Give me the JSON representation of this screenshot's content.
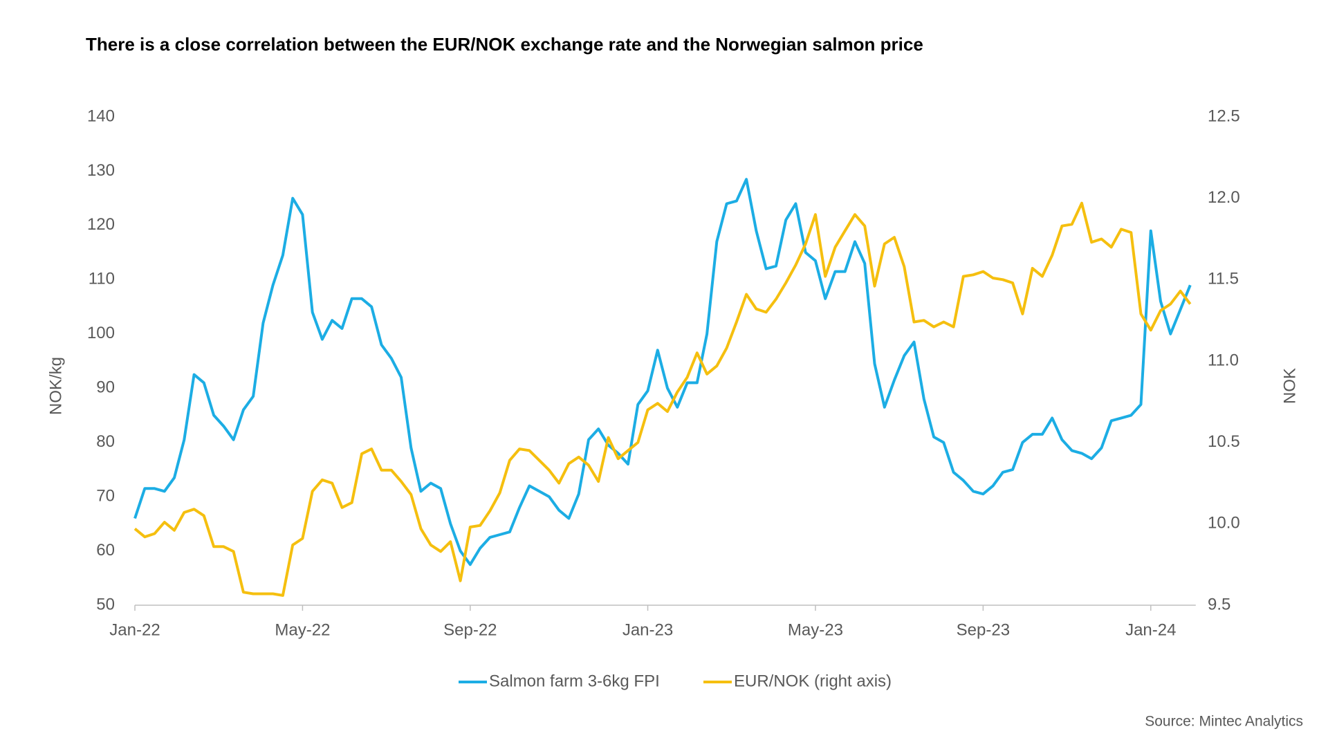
{
  "chart_data": {
    "type": "line",
    "title": "There is a close correlation between the EUR/NOK exchange rate and the Norwegian salmon price",
    "y_label": "NOK/kg",
    "y2_label": "NOK",
    "source": "Source: Mintec Analytics",
    "categories": [
      "Jan-22",
      null,
      null,
      null,
      null,
      null,
      null,
      null,
      null,
      null,
      null,
      null,
      null,
      null,
      null,
      null,
      null,
      "May-22",
      null,
      null,
      null,
      null,
      null,
      null,
      null,
      null,
      null,
      null,
      null,
      null,
      null,
      null,
      null,
      null,
      "Sep-22",
      null,
      null,
      null,
      null,
      null,
      null,
      null,
      null,
      null,
      null,
      null,
      null,
      null,
      null,
      null,
      null,
      null,
      "Jan-23",
      null,
      null,
      null,
      null,
      null,
      null,
      null,
      null,
      null,
      null,
      null,
      null,
      null,
      null,
      null,
      null,
      "May-23",
      null,
      null,
      null,
      null,
      null,
      null,
      null,
      null,
      null,
      null,
      null,
      null,
      null,
      null,
      null,
      null,
      "Sep-23",
      null,
      null,
      null,
      null,
      null,
      null,
      null,
      null,
      null,
      null,
      null,
      null,
      null,
      null,
      null,
      null,
      "Jan-24",
      null,
      null,
      null,
      null
    ],
    "series": [
      {
        "name": "Salmon farm 3-6kg FPI",
        "color": "#1cade4",
        "values": [
          66,
          71.5,
          71.5,
          71,
          73.5,
          80.5,
          92.5,
          91,
          85,
          83,
          80.5,
          86,
          88.5,
          102,
          109,
          114.5,
          125,
          122,
          104,
          99,
          102.5,
          101,
          106.5,
          106.5,
          105,
          98,
          95.5,
          92,
          79,
          71,
          72.5,
          71.5,
          65,
          60,
          57.5,
          60.5,
          62.5,
          63,
          63.5,
          68,
          72,
          71,
          70,
          67.5,
          66,
          70.5,
          80.5,
          82.5,
          79.5,
          78,
          76,
          87,
          89.5,
          97,
          90,
          86.5,
          91,
          91,
          100,
          117,
          124,
          124.5,
          128.5,
          119,
          112,
          112.5,
          121,
          124,
          115,
          113.5,
          106.5,
          111.5,
          111.5,
          117,
          113,
          94.5,
          86.5,
          91.5,
          96,
          98.5,
          88,
          81,
          80,
          74.5,
          73,
          71,
          70.5,
          72,
          74.5,
          75,
          80,
          81.5,
          81.5,
          84.5,
          80.5,
          78.5,
          78,
          77,
          79,
          84,
          84.5,
          85,
          87,
          119,
          106,
          100,
          104.5,
          109
        ]
      },
      {
        "name": "EUR/NOK (right axis)",
        "color": "#f5bf0f",
        "axis": "y2",
        "values": [
          9.97,
          9.92,
          9.94,
          10.01,
          9.96,
          10.07,
          10.09,
          10.05,
          9.86,
          9.86,
          9.83,
          9.58,
          9.57,
          9.57,
          9.57,
          9.56,
          9.87,
          9.91,
          10.2,
          10.27,
          10.25,
          10.1,
          10.13,
          10.43,
          10.46,
          10.33,
          10.33,
          10.26,
          10.18,
          9.97,
          9.87,
          9.83,
          9.89,
          9.65,
          9.98,
          9.99,
          10.08,
          10.19,
          10.39,
          10.46,
          10.45,
          10.39,
          10.33,
          10.25,
          10.37,
          10.41,
          10.36,
          10.26,
          10.53,
          10.4,
          10.45,
          10.5,
          10.7,
          10.74,
          10.69,
          10.81,
          10.9,
          11.05,
          10.92,
          10.97,
          11.08,
          11.24,
          11.41,
          11.32,
          11.3,
          11.38,
          11.48,
          11.59,
          11.72,
          11.9,
          11.52,
          11.7,
          11.8,
          11.9,
          11.83,
          11.46,
          11.72,
          11.76,
          11.58,
          11.24,
          11.25,
          11.21,
          11.24,
          11.21,
          11.52,
          11.53,
          11.55,
          11.51,
          11.5,
          11.48,
          11.29,
          11.57,
          11.52,
          11.65,
          11.83,
          11.84,
          11.97,
          11.73,
          11.75,
          11.7,
          11.81,
          11.79,
          11.29,
          11.19,
          11.31,
          11.35,
          11.43,
          11.35
        ]
      }
    ],
    "ylim": [
      50,
      140
    ],
    "yticks": [
      50,
      60,
      70,
      80,
      90,
      100,
      110,
      120,
      130,
      140
    ],
    "y2lim": [
      9.5,
      12.5
    ],
    "y2ticks": [
      {
        "value": 9.5,
        "label": "9.5"
      },
      {
        "value": 10,
        "label": "10.0"
      },
      {
        "value": 10.5,
        "label": "10.5"
      },
      {
        "value": 11,
        "label": "11.0"
      },
      {
        "value": 11.5,
        "label": "11.5"
      },
      {
        "value": 12,
        "label": "12.0"
      },
      {
        "value": 12.5,
        "label": "12.5"
      }
    ],
    "grid": false,
    "legend": "bottom"
  }
}
